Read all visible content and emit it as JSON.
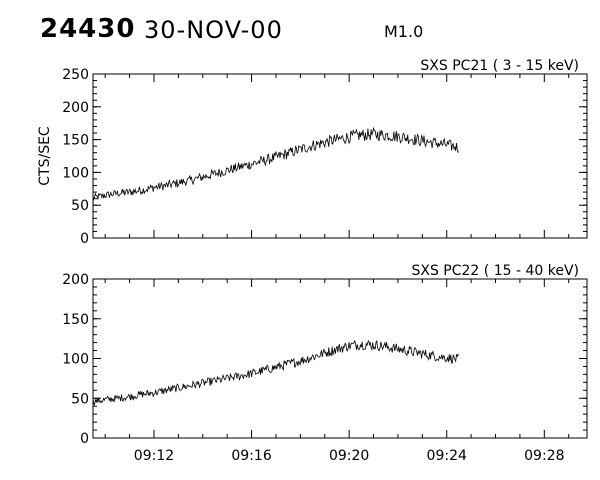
{
  "header": {
    "event_id": "24430",
    "date": "30-NOV-00",
    "flare_class": "M1.0"
  },
  "chart_data": [
    {
      "type": "line",
      "title": "SXS PC21  (  3 - 15 keV)",
      "xlabel": "",
      "ylabel": "CTS/SEC",
      "ylim": [
        0,
        250
      ],
      "yticks": [
        0,
        50,
        100,
        150,
        200,
        250
      ],
      "xlim": [
        "09:09:30",
        "09:29:45"
      ],
      "xtick_labels": [
        "09:12",
        "09:16",
        "09:20",
        "09:24",
        "09:28"
      ],
      "grid": false,
      "series": [
        {
          "x": [
            "09:09:30",
            "09:10:00",
            "09:10:30",
            "09:11:00",
            "09:11:30",
            "09:12:00",
            "09:12:30",
            "09:13:00",
            "09:13:30",
            "09:14:00",
            "09:14:30",
            "09:15:00",
            "09:15:30",
            "09:16:00",
            "09:16:30",
            "09:17:00",
            "09:17:30",
            "09:18:00",
            "09:18:30",
            "09:19:00",
            "09:19:30",
            "09:20:00",
            "09:20:30",
            "09:21:00",
            "09:21:30",
            "09:22:00",
            "09:22:30",
            "09:23:00",
            "09:23:30",
            "09:24:00",
            "09:24:30"
          ],
          "y": [
            61,
            65,
            68,
            70,
            73,
            77,
            80,
            84,
            88,
            93,
            98,
            103,
            108,
            113,
            118,
            123,
            129,
            135,
            141,
            146,
            150,
            154,
            157,
            158,
            157,
            155,
            152,
            148,
            145,
            142,
            138
          ]
        }
      ]
    },
    {
      "type": "line",
      "title": "SXS PC22  ( 15 - 40 keV)",
      "xlabel": "",
      "ylabel": "",
      "ylim": [
        0,
        200
      ],
      "yticks": [
        0,
        50,
        100,
        150,
        200
      ],
      "xlim": [
        "09:09:30",
        "09:29:45"
      ],
      "xtick_labels": [
        "09:12",
        "09:16",
        "09:20",
        "09:24",
        "09:28"
      ],
      "grid": false,
      "series": [
        {
          "x": [
            "09:09:30",
            "09:10:00",
            "09:10:30",
            "09:11:00",
            "09:11:30",
            "09:12:00",
            "09:12:30",
            "09:13:00",
            "09:13:30",
            "09:14:00",
            "09:14:30",
            "09:15:00",
            "09:15:30",
            "09:16:00",
            "09:16:30",
            "09:17:00",
            "09:17:30",
            "09:18:00",
            "09:18:30",
            "09:19:00",
            "09:19:30",
            "09:20:00",
            "09:20:30",
            "09:21:00",
            "09:21:30",
            "09:22:00",
            "09:22:30",
            "09:23:00",
            "09:23:30",
            "09:24:00",
            "09:24:30"
          ],
          "y": [
            46,
            48,
            50,
            52,
            55,
            57,
            60,
            63,
            66,
            69,
            72,
            75,
            78,
            81,
            85,
            89,
            93,
            97,
            102,
            107,
            112,
            116,
            118,
            117,
            115,
            112,
            109,
            106,
            103,
            101,
            99
          ]
        }
      ]
    }
  ]
}
